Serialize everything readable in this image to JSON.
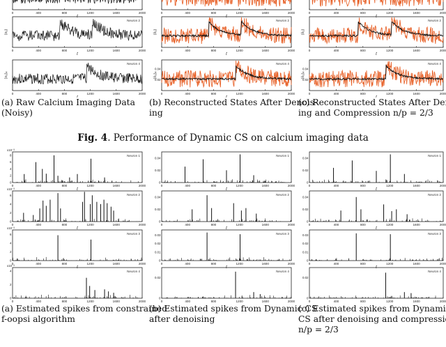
{
  "figure": {
    "label": "Fig. 4",
    "title": ". Performance of Dynamic CS on calcium imaging data"
  },
  "top_captions": [
    {
      "lines": [
        "(a)  Raw   Calcium   Imaging   Data",
        "(Noisy)"
      ]
    },
    {
      "lines": [
        "(b) Reconstructed States After Denois-",
        "ing"
      ]
    },
    {
      "lines": [
        "(c) Reconstructed States After Denois-",
        "ing and Compression n/p = 2/3"
      ]
    }
  ],
  "bottom_captions": [
    {
      "lines": [
        "(a) Estimated spikes from constrained",
        "f-oopsi algorithm"
      ]
    },
    {
      "lines": [
        "(b) Estimated spikes from Dynamic CS",
        "after denoising"
      ]
    },
    {
      "lines": [
        "(c) Estimated spikes from Dynamic",
        "CS after denoising and compression",
        "n/p = 2/3"
      ]
    }
  ],
  "colors": {
    "trace": "#111111",
    "noise": "#e8642c"
  },
  "chart_data": [
    {
      "type": "line",
      "id": "top-a1",
      "xlabel": "t",
      "ylabel": "",
      "xlim": [
        0,
        2000
      ],
      "xticks": [
        "0",
        "400",
        "800",
        "1200",
        "1600",
        "2000"
      ],
      "legend": "",
      "series": [
        {
          "style": "raw",
          "seed": 1,
          "peaks": []
        }
      ]
    },
    {
      "type": "line",
      "id": "top-a2",
      "xlabel": "t",
      "ylabel": "(x₂)",
      "xlim": [
        0,
        2000
      ],
      "xticks": [
        "0",
        "400",
        "800",
        "1200",
        "1600",
        "2000"
      ],
      "legend": "Neuron 2",
      "series": [
        {
          "style": "raw",
          "seed": 2,
          "peaks": [
            730,
            1230
          ]
        }
      ]
    },
    {
      "type": "line",
      "id": "top-a3",
      "xlabel": "t",
      "ylabel": "(x₃)₄",
      "xlim": [
        0,
        2000
      ],
      "xticks": [
        "0",
        "400",
        "800",
        "1200",
        "1600",
        "2000"
      ],
      "legend": "Neuron 4",
      "series": [
        {
          "style": "raw",
          "seed": 3,
          "peaks": [
            1140
          ]
        }
      ]
    },
    {
      "type": "line",
      "id": "top-b1",
      "xlabel": "t",
      "ylabel": "",
      "xlim": [
        0,
        2000
      ],
      "xticks": [
        "0",
        "400",
        "800",
        "1200",
        "1600",
        "2000"
      ],
      "yticks": [],
      "legend": "",
      "series": [
        {
          "style": "recon",
          "seed": 4,
          "peaks": []
        }
      ]
    },
    {
      "type": "line",
      "id": "top-b2",
      "xlabel": "t",
      "ylabel": "(x̂₂)",
      "xlim": [
        0,
        2000
      ],
      "xticks": [
        "0",
        "400",
        "800",
        "1200",
        "1600",
        "2000"
      ],
      "yticks": [],
      "legend": "Neuron 2",
      "series": [
        {
          "style": "recon",
          "seed": 5,
          "peaks": [
            730,
            1230
          ]
        }
      ]
    },
    {
      "type": "line",
      "id": "top-b3",
      "xlabel": "t",
      "ylabel": "(x̂₃)₄",
      "xlim": [
        0,
        2000
      ],
      "xticks": [
        "0",
        "400",
        "800",
        "1200",
        "1600",
        "2000"
      ],
      "yticks": [
        "0.02",
        "0.04"
      ],
      "legend": "Neuron 4",
      "series": [
        {
          "style": "recon",
          "seed": 6,
          "peaks": [
            1140
          ]
        }
      ]
    },
    {
      "type": "line",
      "id": "top-c1",
      "xlabel": "t",
      "ylabel": "",
      "xlim": [
        0,
        2000
      ],
      "xticks": [
        "0",
        "400",
        "800",
        "1200",
        "1600",
        "2000"
      ],
      "yticks": [],
      "legend": "",
      "series": [
        {
          "style": "recon",
          "seed": 7,
          "peaks": []
        }
      ]
    },
    {
      "type": "line",
      "id": "top-c2",
      "xlabel": "t",
      "ylabel": "(x̂₂)",
      "xlim": [
        0,
        2000
      ],
      "xticks": [
        "0",
        "400",
        "800",
        "1200",
        "1600",
        "2000"
      ],
      "yticks": [],
      "legend": "Neuron 2",
      "series": [
        {
          "style": "recon",
          "seed": 8,
          "peaks": [
            730,
            1230
          ]
        }
      ]
    },
    {
      "type": "line",
      "id": "top-c3",
      "xlabel": "t",
      "ylabel": "(x̂₃)₄",
      "xlim": [
        0,
        2000
      ],
      "xticks": [
        "0",
        "400",
        "800",
        "1200",
        "1600",
        "2000"
      ],
      "yticks": [
        "0.02",
        "0.04"
      ],
      "legend": "Neuron 4",
      "series": [
        {
          "style": "recon",
          "seed": 9,
          "peaks": [
            1140
          ]
        }
      ]
    },
    {
      "type": "bar",
      "id": "bot-a1",
      "xlabel": "t",
      "xlim": [
        0,
        2000
      ],
      "xticks": [
        "0",
        "400",
        "800",
        "1200",
        "1600",
        "2000"
      ],
      "yticks": [
        "0",
        "2",
        "4",
        "6",
        "8"
      ],
      "ylim": [
        0,
        9
      ],
      "exponent": "x10⁻³",
      "legend": "Neuron 1",
      "spikes": [
        [
          180,
          2.5
        ],
        [
          360,
          6
        ],
        [
          460,
          4
        ],
        [
          520,
          2.6
        ],
        [
          640,
          8
        ],
        [
          700,
          2
        ],
        [
          880,
          1.5
        ],
        [
          1000,
          2.5
        ],
        [
          1210,
          7
        ],
        [
          1420,
          1.5
        ]
      ],
      "seed": 11
    },
    {
      "type": "bar",
      "id": "bot-a2",
      "xlabel": "t",
      "xlim": [
        0,
        2000
      ],
      "xticks": [
        "0",
        "400",
        "800",
        "1200",
        "1600",
        "2000"
      ],
      "yticks": [
        "0",
        "2",
        "4",
        "6"
      ],
      "ylim": [
        0,
        7
      ],
      "exponent": "x10⁻³",
      "legend": "Neuron 2",
      "spikes": [
        [
          170,
          2
        ],
        [
          320,
          1.5
        ],
        [
          420,
          3
        ],
        [
          470,
          4.8
        ],
        [
          520,
          3.6
        ],
        [
          580,
          5
        ],
        [
          700,
          6.5
        ],
        [
          740,
          3
        ],
        [
          1080,
          4.5
        ],
        [
          1110,
          6.8
        ],
        [
          1200,
          4
        ],
        [
          1230,
          6
        ],
        [
          1300,
          4.5
        ],
        [
          1360,
          4
        ],
        [
          1410,
          5
        ],
        [
          1460,
          4.2
        ],
        [
          1520,
          3.4
        ],
        [
          1560,
          2.5
        ]
      ],
      "seed": 12
    },
    {
      "type": "bar",
      "id": "bot-a3",
      "xlabel": "t",
      "xlim": [
        0,
        2000
      ],
      "xticks": [
        "0",
        "400",
        "800",
        "1200",
        "1600",
        "2000"
      ],
      "yticks": [
        "0",
        "2",
        "4",
        "6"
      ],
      "ylim": [
        0,
        7
      ],
      "exponent": "x10⁻³",
      "legend": "Neuron 3",
      "spikes": [
        [
          700,
          5.8
        ],
        [
          1210,
          4.8
        ]
      ],
      "seed": 13
    },
    {
      "type": "bar",
      "id": "bot-a4",
      "xlabel": "t",
      "xlim": [
        0,
        2000
      ],
      "xticks": [
        "0",
        "400",
        "800",
        "1200",
        "1600",
        "2000"
      ],
      "yticks": [
        "0",
        "2",
        "4"
      ],
      "ylim": [
        0,
        4.5
      ],
      "exponent": "x10⁻³",
      "legend": "Neuron 4",
      "spikes": [
        [
          1140,
          3
        ],
        [
          1190,
          1.8
        ],
        [
          1270,
          1.2
        ],
        [
          1420,
          1.3
        ],
        [
          1480,
          1
        ],
        [
          1560,
          0.8
        ]
      ],
      "seed": 14
    },
    {
      "type": "bar",
      "id": "bot-b1",
      "xlabel": "t",
      "xlim": [
        0,
        2000
      ],
      "xticks": [
        "0",
        "400",
        "800",
        "1200",
        "1600",
        "2000"
      ],
      "yticks": [
        "0",
        "0.02",
        "0.04"
      ],
      "ylim": [
        0,
        0.05
      ],
      "exponent": "",
      "legend": "Neuron 1",
      "spikes": [
        [
          360,
          0.026
        ],
        [
          640,
          0.038
        ],
        [
          1000,
          0.02
        ],
        [
          1210,
          0.046
        ],
        [
          1420,
          0.012
        ]
      ],
      "seed": 21
    },
    {
      "type": "bar",
      "id": "bot-b2",
      "xlabel": "t",
      "xlim": [
        0,
        2000
      ],
      "xticks": [
        "0",
        "400",
        "800",
        "1200",
        "1600",
        "2000"
      ],
      "yticks": [
        "0",
        "0.02",
        "0.04"
      ],
      "ylim": [
        0,
        0.05
      ],
      "exponent": "",
      "legend": "Neuron 2",
      "spikes": [
        [
          470,
          0.02
        ],
        [
          700,
          0.043
        ],
        [
          770,
          0.022
        ],
        [
          1110,
          0.03
        ],
        [
          1230,
          0.018
        ],
        [
          1300,
          0.022
        ],
        [
          1460,
          0.013
        ]
      ],
      "seed": 22
    },
    {
      "type": "bar",
      "id": "bot-b3",
      "xlabel": "t",
      "xlim": [
        0,
        2000
      ],
      "xticks": [
        "0",
        "400",
        "800",
        "1200",
        "1600",
        "2000"
      ],
      "yticks": [
        "0",
        "0.01",
        "0.02",
        "0.03"
      ],
      "ylim": [
        0,
        0.036
      ],
      "exponent": "",
      "legend": "Neuron 3",
      "spikes": [
        [
          700,
          0.033
        ],
        [
          1210,
          0.031
        ]
      ],
      "seed": 23
    },
    {
      "type": "bar",
      "id": "bot-b4",
      "xlabel": "t",
      "xlim": [
        0,
        2000
      ],
      "xticks": [
        "0",
        "400",
        "800",
        "1200",
        "1600",
        "2000"
      ],
      "yticks": [
        "0",
        "0.02"
      ],
      "ylim": [
        0,
        0.03
      ],
      "exponent": "",
      "legend": "Neuron 4",
      "spikes": [
        [
          1140,
          0.026
        ],
        [
          1420,
          0.006
        ],
        [
          1520,
          0.004
        ]
      ],
      "seed": 24
    },
    {
      "type": "bar",
      "id": "bot-c1",
      "xlabel": "t",
      "xlim": [
        0,
        2000
      ],
      "xticks": [
        "0",
        "400",
        "800",
        "1200",
        "1600",
        "2000"
      ],
      "yticks": [
        "0",
        "0.02",
        "0.04"
      ],
      "ylim": [
        0,
        0.05
      ],
      "exponent": "",
      "legend": "Neuron 1",
      "spikes": [
        [
          360,
          0.024
        ],
        [
          640,
          0.036
        ],
        [
          1000,
          0.019
        ],
        [
          1210,
          0.046
        ],
        [
          1420,
          0.014
        ]
      ],
      "seed": 31
    },
    {
      "type": "bar",
      "id": "bot-c2",
      "xlabel": "t",
      "xlim": [
        0,
        2000
      ],
      "xticks": [
        "0",
        "400",
        "800",
        "1200",
        "1600",
        "2000"
      ],
      "yticks": [
        "0",
        "0.02",
        "0.04"
      ],
      "ylim": [
        0,
        0.05
      ],
      "exponent": "",
      "legend": "Neuron 2",
      "spikes": [
        [
          470,
          0.018
        ],
        [
          700,
          0.04
        ],
        [
          770,
          0.02
        ],
        [
          1110,
          0.028
        ],
        [
          1230,
          0.017
        ],
        [
          1300,
          0.02
        ],
        [
          1460,
          0.012
        ]
      ],
      "seed": 32
    },
    {
      "type": "bar",
      "id": "bot-c3",
      "xlabel": "t",
      "xlim": [
        0,
        2000
      ],
      "xticks": [
        "0",
        "400",
        "800",
        "1200",
        "1600",
        "2000"
      ],
      "yticks": [
        "0",
        "0.01",
        "0.02",
        "0.03"
      ],
      "ylim": [
        0,
        0.036
      ],
      "exponent": "",
      "legend": "Neuron 3",
      "spikes": [
        [
          700,
          0.032
        ],
        [
          1210,
          0.031
        ]
      ],
      "seed": 33
    },
    {
      "type": "bar",
      "id": "bot-c4",
      "xlabel": "t",
      "xlim": [
        0,
        2000
      ],
      "xticks": [
        "0",
        "400",
        "800",
        "1200",
        "1600",
        "2000"
      ],
      "yticks": [
        "0",
        "0.02"
      ],
      "ylim": [
        0,
        0.03
      ],
      "exponent": "",
      "legend": "Neuron 4",
      "spikes": [
        [
          1140,
          0.025
        ],
        [
          1420,
          0.006
        ],
        [
          1520,
          0.005
        ]
      ],
      "seed": 34
    }
  ]
}
